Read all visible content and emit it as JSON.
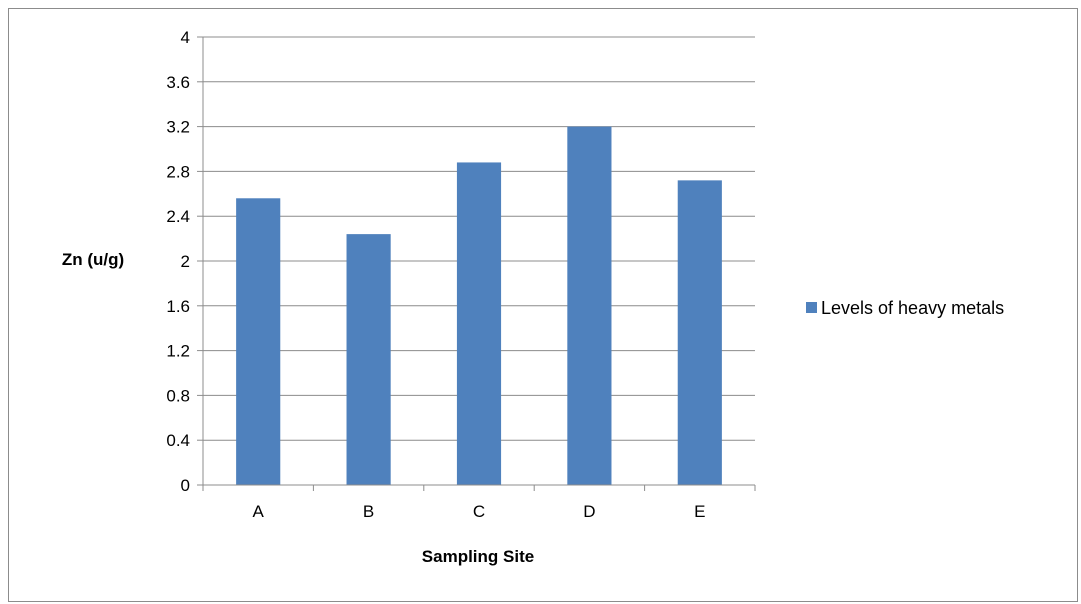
{
  "chart_data": {
    "type": "bar",
    "categories": [
      "A",
      "B",
      "C",
      "D",
      "E"
    ],
    "series": [
      {
        "name": "Levels of heavy metals",
        "values": [
          2.56,
          2.24,
          2.88,
          3.2,
          2.72
        ],
        "color": "#4f81bd"
      }
    ],
    "xlabel": "Sampling Site",
    "ylabel": "Zn (u/g)",
    "ylim": [
      0,
      4
    ],
    "yticks": [
      "0",
      "0.4",
      "0.8",
      "1.2",
      "1.6",
      "2",
      "2.4",
      "2.8",
      "3.2",
      "3.6",
      "4"
    ],
    "grid": true,
    "legend_position": "right",
    "gridline_color": "#8c8c8c",
    "axis_color": "#8c8c8c"
  }
}
